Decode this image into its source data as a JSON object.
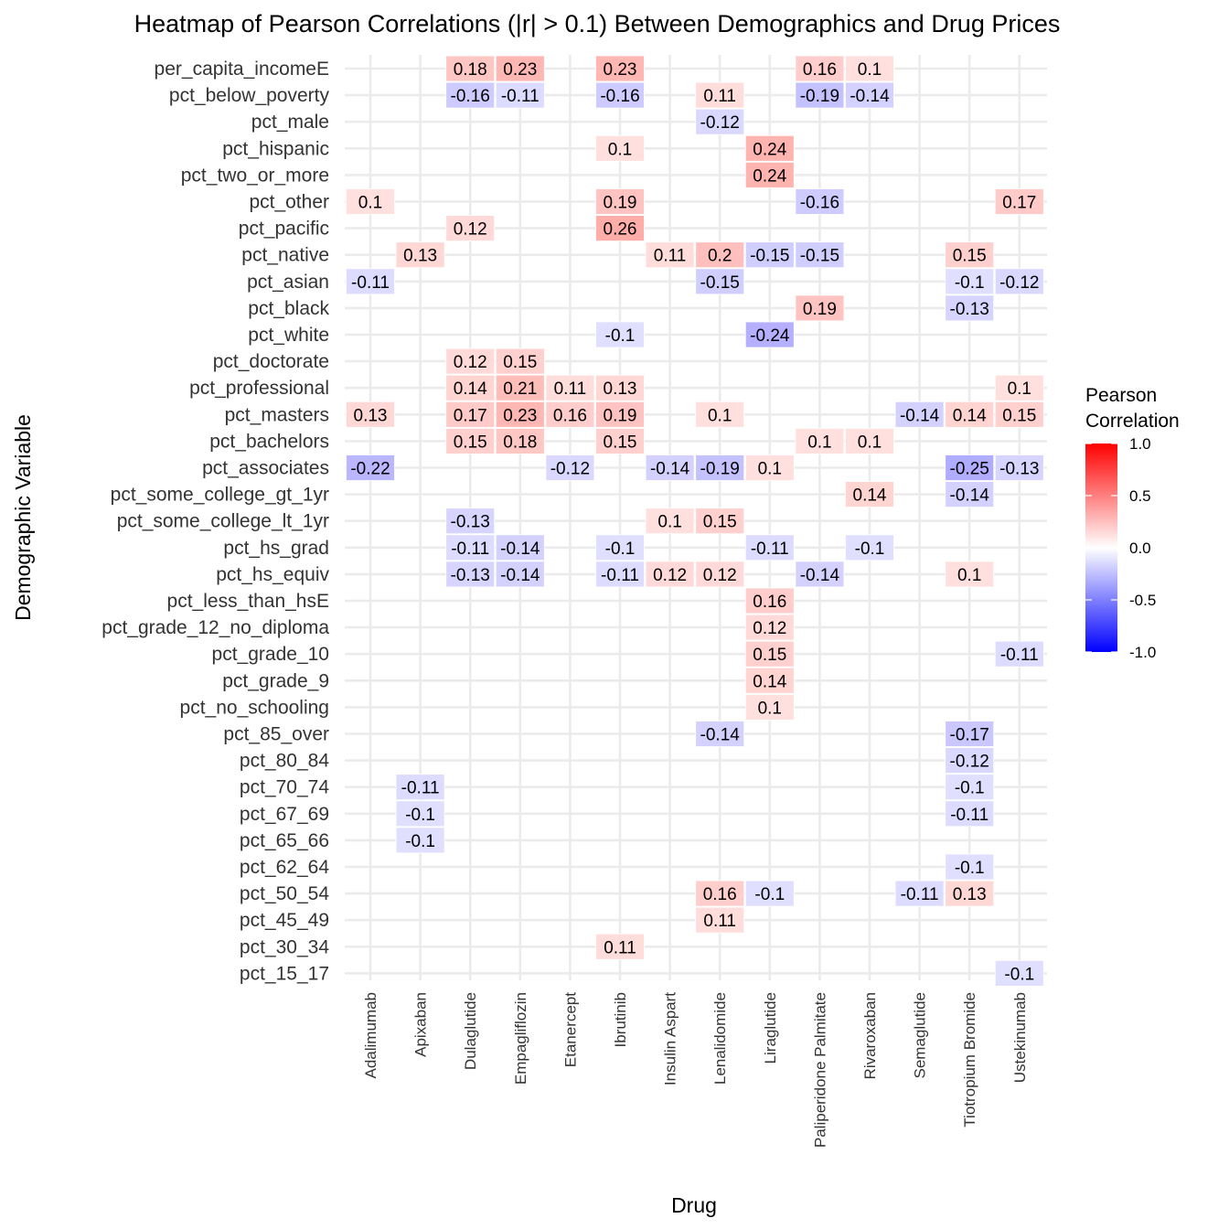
{
  "chart_data": {
    "type": "heatmap",
    "title": "Heatmap of Pearson Correlations (|r| > 0.1) Between Demographics and Drug Prices",
    "xlabel": "Drug",
    "ylabel": "Demographic Variable",
    "x_categories": [
      "Adalimumab",
      "Apixaban",
      "Dulaglutide",
      "Empagliflozin",
      "Etanercept",
      "Ibrutinib",
      "Insulin Aspart",
      "Lenalidomide",
      "Liraglutide",
      "Paliperidone Palmitate",
      "Rivaroxaban",
      "Semaglutide",
      "Tiotropium Bromide",
      "Ustekinumab"
    ],
    "y_categories": [
      "per_capita_incomeE",
      "pct_below_poverty",
      "pct_male",
      "pct_hispanic",
      "pct_two_or_more",
      "pct_other",
      "pct_pacific",
      "pct_native",
      "pct_asian",
      "pct_black",
      "pct_white",
      "pct_doctorate",
      "pct_professional",
      "pct_masters",
      "pct_bachelors",
      "pct_associates",
      "pct_some_college_gt_1yr",
      "pct_some_college_lt_1yr",
      "pct_hs_grad",
      "pct_hs_equiv",
      "pct_less_than_hsE",
      "pct_grade_12_no_diploma",
      "pct_grade_10",
      "pct_grade_9",
      "pct_no_schooling",
      "pct_85_over",
      "pct_80_84",
      "pct_70_74",
      "pct_67_69",
      "pct_65_66",
      "pct_62_64",
      "pct_50_54",
      "pct_45_49",
      "pct_30_34",
      "pct_15_17"
    ],
    "cells": [
      {
        "x": "Dulaglutide",
        "y": "per_capita_incomeE",
        "value": 0.18
      },
      {
        "x": "Empagliflozin",
        "y": "per_capita_incomeE",
        "value": 0.23
      },
      {
        "x": "Ibrutinib",
        "y": "per_capita_incomeE",
        "value": 0.23
      },
      {
        "x": "Paliperidone Palmitate",
        "y": "per_capita_incomeE",
        "value": 0.16
      },
      {
        "x": "Rivaroxaban",
        "y": "per_capita_incomeE",
        "value": 0.1
      },
      {
        "x": "Dulaglutide",
        "y": "pct_below_poverty",
        "value": -0.16
      },
      {
        "x": "Empagliflozin",
        "y": "pct_below_poverty",
        "value": -0.11
      },
      {
        "x": "Ibrutinib",
        "y": "pct_below_poverty",
        "value": -0.16
      },
      {
        "x": "Lenalidomide",
        "y": "pct_below_poverty",
        "value": 0.11
      },
      {
        "x": "Paliperidone Palmitate",
        "y": "pct_below_poverty",
        "value": -0.19
      },
      {
        "x": "Rivaroxaban",
        "y": "pct_below_poverty",
        "value": -0.14
      },
      {
        "x": "Lenalidomide",
        "y": "pct_male",
        "value": -0.12
      },
      {
        "x": "Ibrutinib",
        "y": "pct_hispanic",
        "value": 0.1
      },
      {
        "x": "Liraglutide",
        "y": "pct_hispanic",
        "value": 0.24
      },
      {
        "x": "Liraglutide",
        "y": "pct_two_or_more",
        "value": 0.24
      },
      {
        "x": "Adalimumab",
        "y": "pct_other",
        "value": 0.1
      },
      {
        "x": "Ibrutinib",
        "y": "pct_other",
        "value": 0.19
      },
      {
        "x": "Paliperidone Palmitate",
        "y": "pct_other",
        "value": -0.16
      },
      {
        "x": "Ustekinumab",
        "y": "pct_other",
        "value": 0.17
      },
      {
        "x": "Dulaglutide",
        "y": "pct_pacific",
        "value": 0.12
      },
      {
        "x": "Ibrutinib",
        "y": "pct_pacific",
        "value": 0.26
      },
      {
        "x": "Apixaban",
        "y": "pct_native",
        "value": 0.13
      },
      {
        "x": "Insulin Aspart",
        "y": "pct_native",
        "value": 0.11
      },
      {
        "x": "Lenalidomide",
        "y": "pct_native",
        "value": 0.2
      },
      {
        "x": "Liraglutide",
        "y": "pct_native",
        "value": -0.15
      },
      {
        "x": "Paliperidone Palmitate",
        "y": "pct_native",
        "value": -0.15
      },
      {
        "x": "Tiotropium Bromide",
        "y": "pct_native",
        "value": 0.15
      },
      {
        "x": "Adalimumab",
        "y": "pct_asian",
        "value": -0.11
      },
      {
        "x": "Lenalidomide",
        "y": "pct_asian",
        "value": -0.15
      },
      {
        "x": "Tiotropium Bromide",
        "y": "pct_asian",
        "value": -0.1
      },
      {
        "x": "Ustekinumab",
        "y": "pct_asian",
        "value": -0.12
      },
      {
        "x": "Paliperidone Palmitate",
        "y": "pct_black",
        "value": 0.19
      },
      {
        "x": "Tiotropium Bromide",
        "y": "pct_black",
        "value": -0.13
      },
      {
        "x": "Ibrutinib",
        "y": "pct_white",
        "value": -0.1
      },
      {
        "x": "Liraglutide",
        "y": "pct_white",
        "value": -0.24
      },
      {
        "x": "Dulaglutide",
        "y": "pct_doctorate",
        "value": 0.12
      },
      {
        "x": "Empagliflozin",
        "y": "pct_doctorate",
        "value": 0.15
      },
      {
        "x": "Dulaglutide",
        "y": "pct_professional",
        "value": 0.14
      },
      {
        "x": "Empagliflozin",
        "y": "pct_professional",
        "value": 0.21
      },
      {
        "x": "Etanercept",
        "y": "pct_professional",
        "value": 0.11
      },
      {
        "x": "Ibrutinib",
        "y": "pct_professional",
        "value": 0.13
      },
      {
        "x": "Ustekinumab",
        "y": "pct_professional",
        "value": 0.1
      },
      {
        "x": "Adalimumab",
        "y": "pct_masters",
        "value": 0.13
      },
      {
        "x": "Dulaglutide",
        "y": "pct_masters",
        "value": 0.17
      },
      {
        "x": "Empagliflozin",
        "y": "pct_masters",
        "value": 0.23
      },
      {
        "x": "Etanercept",
        "y": "pct_masters",
        "value": 0.16
      },
      {
        "x": "Ibrutinib",
        "y": "pct_masters",
        "value": 0.19
      },
      {
        "x": "Lenalidomide",
        "y": "pct_masters",
        "value": 0.1
      },
      {
        "x": "Semaglutide",
        "y": "pct_masters",
        "value": -0.14
      },
      {
        "x": "Tiotropium Bromide",
        "y": "pct_masters",
        "value": 0.14
      },
      {
        "x": "Ustekinumab",
        "y": "pct_masters",
        "value": 0.15
      },
      {
        "x": "Dulaglutide",
        "y": "pct_bachelors",
        "value": 0.15
      },
      {
        "x": "Empagliflozin",
        "y": "pct_bachelors",
        "value": 0.18
      },
      {
        "x": "Ibrutinib",
        "y": "pct_bachelors",
        "value": 0.15
      },
      {
        "x": "Paliperidone Palmitate",
        "y": "pct_bachelors",
        "value": 0.1
      },
      {
        "x": "Rivaroxaban",
        "y": "pct_bachelors",
        "value": 0.1
      },
      {
        "x": "Adalimumab",
        "y": "pct_associates",
        "value": -0.22
      },
      {
        "x": "Etanercept",
        "y": "pct_associates",
        "value": -0.12
      },
      {
        "x": "Insulin Aspart",
        "y": "pct_associates",
        "value": -0.14
      },
      {
        "x": "Lenalidomide",
        "y": "pct_associates",
        "value": -0.19
      },
      {
        "x": "Liraglutide",
        "y": "pct_associates",
        "value": 0.1
      },
      {
        "x": "Tiotropium Bromide",
        "y": "pct_associates",
        "value": -0.25
      },
      {
        "x": "Ustekinumab",
        "y": "pct_associates",
        "value": -0.13
      },
      {
        "x": "Rivaroxaban",
        "y": "pct_some_college_gt_1yr",
        "value": 0.14
      },
      {
        "x": "Tiotropium Bromide",
        "y": "pct_some_college_gt_1yr",
        "value": -0.14
      },
      {
        "x": "Dulaglutide",
        "y": "pct_some_college_lt_1yr",
        "value": -0.13
      },
      {
        "x": "Insulin Aspart",
        "y": "pct_some_college_lt_1yr",
        "value": 0.1
      },
      {
        "x": "Lenalidomide",
        "y": "pct_some_college_lt_1yr",
        "value": 0.15
      },
      {
        "x": "Dulaglutide",
        "y": "pct_hs_grad",
        "value": -0.11
      },
      {
        "x": "Empagliflozin",
        "y": "pct_hs_grad",
        "value": -0.14
      },
      {
        "x": "Ibrutinib",
        "y": "pct_hs_grad",
        "value": -0.1
      },
      {
        "x": "Liraglutide",
        "y": "pct_hs_grad",
        "value": -0.11
      },
      {
        "x": "Rivaroxaban",
        "y": "pct_hs_grad",
        "value": -0.1
      },
      {
        "x": "Dulaglutide",
        "y": "pct_hs_equiv",
        "value": -0.13
      },
      {
        "x": "Empagliflozin",
        "y": "pct_hs_equiv",
        "value": -0.14
      },
      {
        "x": "Ibrutinib",
        "y": "pct_hs_equiv",
        "value": -0.11
      },
      {
        "x": "Insulin Aspart",
        "y": "pct_hs_equiv",
        "value": 0.12
      },
      {
        "x": "Lenalidomide",
        "y": "pct_hs_equiv",
        "value": 0.12
      },
      {
        "x": "Paliperidone Palmitate",
        "y": "pct_hs_equiv",
        "value": -0.14
      },
      {
        "x": "Tiotropium Bromide",
        "y": "pct_hs_equiv",
        "value": 0.1
      },
      {
        "x": "Liraglutide",
        "y": "pct_less_than_hsE",
        "value": 0.16
      },
      {
        "x": "Liraglutide",
        "y": "pct_grade_12_no_diploma",
        "value": 0.12
      },
      {
        "x": "Liraglutide",
        "y": "pct_grade_10",
        "value": 0.15
      },
      {
        "x": "Ustekinumab",
        "y": "pct_grade_10",
        "value": -0.11
      },
      {
        "x": "Liraglutide",
        "y": "pct_grade_9",
        "value": 0.14
      },
      {
        "x": "Liraglutide",
        "y": "pct_no_schooling",
        "value": 0.1
      },
      {
        "x": "Lenalidomide",
        "y": "pct_85_over",
        "value": -0.14
      },
      {
        "x": "Tiotropium Bromide",
        "y": "pct_85_over",
        "value": -0.17
      },
      {
        "x": "Tiotropium Bromide",
        "y": "pct_80_84",
        "value": -0.12
      },
      {
        "x": "Apixaban",
        "y": "pct_70_74",
        "value": -0.11
      },
      {
        "x": "Tiotropium Bromide",
        "y": "pct_70_74",
        "value": -0.1
      },
      {
        "x": "Apixaban",
        "y": "pct_67_69",
        "value": -0.1
      },
      {
        "x": "Tiotropium Bromide",
        "y": "pct_67_69",
        "value": -0.11
      },
      {
        "x": "Apixaban",
        "y": "pct_65_66",
        "value": -0.1
      },
      {
        "x": "Tiotropium Bromide",
        "y": "pct_62_64",
        "value": -0.1
      },
      {
        "x": "Lenalidomide",
        "y": "pct_50_54",
        "value": 0.16
      },
      {
        "x": "Liraglutide",
        "y": "pct_50_54",
        "value": -0.1
      },
      {
        "x": "Semaglutide",
        "y": "pct_50_54",
        "value": -0.11
      },
      {
        "x": "Tiotropium Bromide",
        "y": "pct_50_54",
        "value": 0.13
      },
      {
        "x": "Lenalidomide",
        "y": "pct_45_49",
        "value": 0.11
      },
      {
        "x": "Ibrutinib",
        "y": "pct_30_34",
        "value": 0.11
      },
      {
        "x": "Ustekinumab",
        "y": "pct_15_17",
        "value": -0.1
      }
    ],
    "legend": {
      "title_lines": [
        "Pearson",
        "Correlation"
      ],
      "ticks": [
        "1.0",
        "0.5",
        "0.0",
        "-0.5",
        "-1.0"
      ],
      "tick_values": [
        1.0,
        0.5,
        0.0,
        -0.5,
        -1.0
      ],
      "range": [
        -1,
        1
      ],
      "placement": "right"
    },
    "colors": {
      "low": "#0000FF",
      "mid": "#FFFFFF",
      "high": "#FF0000",
      "grid": "#EBEBEB",
      "background": "#FFFFFF"
    },
    "grid": true
  }
}
